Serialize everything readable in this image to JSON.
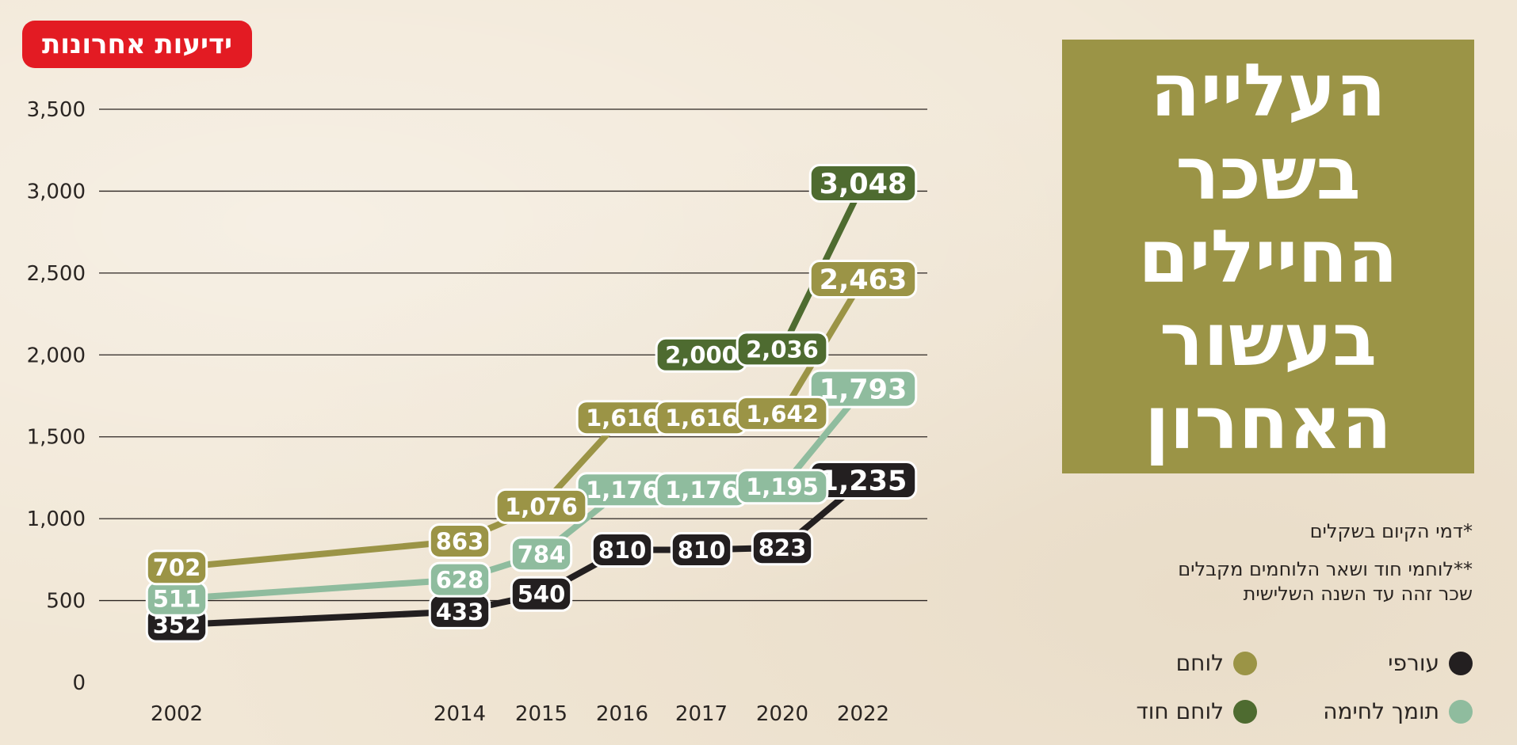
{
  "logo": {
    "text": "ידיעות אחרונות"
  },
  "title": {
    "lines": [
      "העלייה",
      "בשכר",
      "החיילים",
      "בעשור",
      "האחרון"
    ]
  },
  "notes": {
    "note1": "*דמי הקיום בשקלים",
    "note2_line1": "**לוחמי חוד ושאר הלוחמים מקבלים",
    "note2_line2": "שכר זהה עד השנה השלישית"
  },
  "legend": [
    {
      "label": "עורפי",
      "color": "#231f20"
    },
    {
      "label": "לוחם",
      "color": "#9b9446"
    },
    {
      "label": "תומך לחימה",
      "color": "#8fbc9e"
    },
    {
      "label": "לוחם חוד",
      "color": "#4e6b30"
    }
  ],
  "chart_data": {
    "type": "line",
    "title": "העלייה בשכר החיילים בעשור האחרון",
    "x": [
      "2002",
      "2014",
      "2015",
      "2016",
      "2017",
      "2020",
      "2022"
    ],
    "ylim": [
      0,
      3500
    ],
    "yticks": [
      "0",
      "500",
      "1,000",
      "1,500",
      "2,000",
      "2,500",
      "3,000",
      "3,500"
    ],
    "grid": true,
    "legend_position": "bottom-right",
    "series": [
      {
        "name": "עורפי",
        "color": "#231f20",
        "x": [
          "2002",
          "2014",
          "2015",
          "2016",
          "2017",
          "2020",
          "2022"
        ],
        "values": [
          352,
          433,
          540,
          810,
          810,
          823,
          1235
        ],
        "labels": [
          "352",
          "433",
          "540",
          "810",
          "810",
          "823",
          "1,235"
        ]
      },
      {
        "name": "תומך לחימה",
        "color": "#8fbc9e",
        "x": [
          "2002",
          "2014",
          "2015",
          "2016",
          "2017",
          "2020",
          "2022"
        ],
        "values": [
          511,
          628,
          784,
          1176,
          1176,
          1195,
          1793
        ],
        "labels": [
          "511",
          "628",
          "784",
          "1,176",
          "1,176",
          "1,195",
          "1,793"
        ]
      },
      {
        "name": "לוחם",
        "color": "#9b9446",
        "x": [
          "2002",
          "2014",
          "2015",
          "2016",
          "2017",
          "2020",
          "2022"
        ],
        "values": [
          702,
          863,
          1076,
          1616,
          1616,
          1642,
          2463
        ],
        "labels": [
          "702",
          "863",
          "1,076",
          "1,616",
          "1,616",
          "1,642",
          "2,463"
        ]
      },
      {
        "name": "לוחם חוד",
        "color": "#4e6b30",
        "x": [
          "2017",
          "2020",
          "2022"
        ],
        "values": [
          2000,
          2036,
          3048
        ],
        "labels": [
          "2,000",
          "2,036",
          "3,048"
        ]
      }
    ]
  }
}
